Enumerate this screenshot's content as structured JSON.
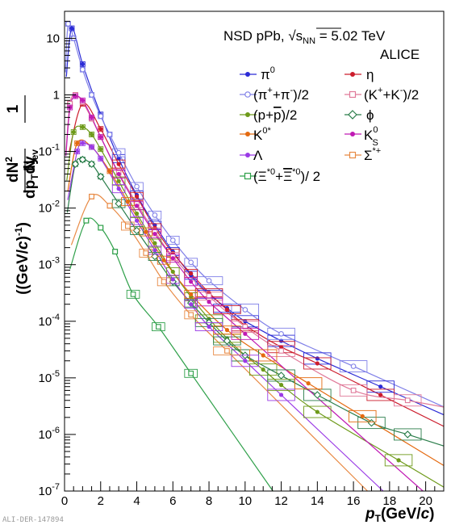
{
  "chart_data": {
    "type": "scatter",
    "title": "",
    "xlabel": "pT(GeV/c)",
    "ylabel": "1/Nev d²N/dpTdy ((GeV/c)⁻¹)",
    "xlim": [
      0,
      21
    ],
    "ylim": [
      1e-07,
      30
    ],
    "log_y": true,
    "grid": false,
    "legend_placement": "top-right",
    "x_ticks": [
      0,
      2,
      4,
      6,
      8,
      10,
      12,
      14,
      16,
      18,
      20
    ],
    "x_tick_labels": [
      "0",
      "2",
      "4",
      "6",
      "8",
      "10",
      "12",
      "14",
      "16",
      "18",
      "20"
    ],
    "y_ticks": [
      1e-07,
      1e-06,
      1e-05,
      0.0001,
      0.001,
      0.01,
      0.1,
      1,
      10
    ],
    "y_tick_labels": [
      "10-7",
      "10-6",
      "10-5",
      "10-4",
      "10-3",
      "10-2",
      "10-1",
      "1",
      "10"
    ],
    "annotations": [
      "NSD pPb, √sNN = 5.02 TeV",
      "ALICE"
    ],
    "series": [
      {
        "name": "π0",
        "color": "#2b2bd6",
        "marker": "dot",
        "x": [
          0.4,
          1.0,
          2.0,
          3.0,
          4.0,
          5.0,
          6.0,
          7.0,
          8.0,
          9.0,
          10.0,
          12.0,
          14.0,
          17.5
        ],
        "y": [
          15,
          3.5,
          0.45,
          0.075,
          0.017,
          0.005,
          0.0017,
          0.00065,
          0.0003,
          0.00017,
          0.0001,
          4.5e-05,
          2.2e-05,
          7e-06
        ]
      },
      {
        "name": "(π++π-)/2",
        "color": "#8080e8",
        "marker": "open-circle",
        "x": [
          0.2,
          0.5,
          1.0,
          1.5,
          2.0,
          2.5,
          3.0,
          4.0,
          5.0,
          6.0,
          7.0,
          8.0,
          10.0,
          12.0,
          16.0
        ],
        "y": [
          18,
          10,
          2.8,
          1.0,
          0.42,
          0.2,
          0.095,
          0.024,
          0.0075,
          0.0027,
          0.0011,
          0.00052,
          0.00016,
          6e-05,
          1.6e-05
        ]
      },
      {
        "name": "η",
        "color": "#cc1c2c",
        "marker": "dot",
        "x": [
          1.0,
          2.0,
          3.0,
          4.0,
          5.0,
          6.0,
          7.0,
          8.0,
          9.0,
          10.0,
          12.0,
          14.0,
          17.5
        ],
        "y": [
          0.7,
          0.25,
          0.06,
          0.016,
          0.0045,
          0.0016,
          0.0007,
          0.00032,
          0.00016,
          8.5e-05,
          3.5e-05,
          1.8e-05,
          5e-06
        ]
      },
      {
        "name": "(K++K-)/2",
        "color": "#e07a9a",
        "marker": "open-square",
        "x": [
          0.3,
          0.6,
          1.0,
          1.5,
          2.0,
          3.0,
          4.0,
          5.0,
          6.0,
          8.0,
          10.0,
          12.0,
          16.0,
          19.0
        ],
        "y": [
          0.7,
          1.0,
          0.75,
          0.38,
          0.18,
          0.042,
          0.012,
          0.0038,
          0.0014,
          0.00028,
          8e-05,
          3e-05,
          6e-06,
          4e-06
        ]
      },
      {
        "name": "(p+p̄)/2",
        "color": "#6e9a1a",
        "marker": "dot",
        "x": [
          0.5,
          1.0,
          1.5,
          2.0,
          3.0,
          4.0,
          5.0,
          6.0,
          7.0,
          8.0,
          9.0,
          10.0,
          11.0,
          12.0,
          14.0,
          18.5
        ],
        "y": [
          0.22,
          0.27,
          0.2,
          0.11,
          0.03,
          0.008,
          0.0024,
          0.00075,
          0.00027,
          0.00011,
          5e-05,
          2.5e-05,
          1.4e-05,
          7.5e-06,
          2.5e-06,
          3.5e-07
        ]
      },
      {
        "name": "φ",
        "color": "#2a7d4a",
        "marker": "open-diamond",
        "x": [
          0.6,
          1.0,
          1.5,
          2.0,
          3.0,
          4.0,
          5.0,
          6.0,
          7.0,
          8.0,
          9.0,
          10.0,
          12.0,
          14.0,
          17.0,
          19.0
        ],
        "y": [
          0.06,
          0.072,
          0.06,
          0.036,
          0.012,
          0.004,
          0.0014,
          0.0005,
          0.00021,
          9.5e-05,
          4.5e-05,
          2.5e-05,
          1.1e-05,
          5e-06,
          1.6e-06,
          1e-06
        ]
      },
      {
        "name": "K*0",
        "color": "#e46a10",
        "marker": "dot",
        "x": [
          0.7,
          1.5,
          2.5,
          3.5,
          4.5,
          5.5,
          7.0,
          9.0,
          11.0,
          13.5,
          16.5
        ],
        "y": [
          0.14,
          0.12,
          0.045,
          0.013,
          0.0038,
          0.0012,
          0.0003,
          7e-05,
          2.5e-05,
          8e-06,
          2.1e-06
        ]
      },
      {
        "name": "K0s",
        "color": "#c01ab4",
        "marker": "dot",
        "x": [
          0.3,
          0.6,
          1.0,
          1.5,
          2.0,
          3.0,
          4.0,
          5.0,
          6.0,
          7.0,
          8.0,
          10.0
        ],
        "y": [
          0.6,
          0.95,
          0.8,
          0.4,
          0.18,
          0.04,
          0.011,
          0.0035,
          0.0013,
          0.0005,
          0.00022,
          6e-05
        ]
      },
      {
        "name": "Λ",
        "color": "#9a3ae6",
        "marker": "dot",
        "x": [
          0.7,
          1.0,
          1.5,
          2.0,
          3.0,
          4.0,
          5.0,
          6.0,
          7.0,
          8.0,
          10.0,
          12.0
        ],
        "y": [
          0.1,
          0.14,
          0.12,
          0.075,
          0.022,
          0.006,
          0.0018,
          0.00055,
          0.0002,
          8e-05,
          2e-05,
          5e-06
        ]
      },
      {
        "name": "Σ*+",
        "color": "#e88a44",
        "marker": "open-square",
        "x": [
          1.5,
          2.5,
          3.5,
          4.5,
          5.5,
          7.0,
          9.0
        ],
        "y": [
          0.016,
          0.011,
          0.0048,
          0.0016,
          0.0005,
          0.00013,
          3e-05
        ]
      },
      {
        "name": "(Ξ*0+Ξ̄*0)/2",
        "color": "#2fa04a",
        "marker": "open-square",
        "x": [
          1.2,
          2.0,
          2.8,
          3.8,
          5.2,
          7.0
        ],
        "y": [
          0.006,
          0.0045,
          0.0017,
          0.0003,
          8e-05,
          1.2e-05
        ]
      }
    ]
  },
  "watermark": "ALI-DER-147894"
}
